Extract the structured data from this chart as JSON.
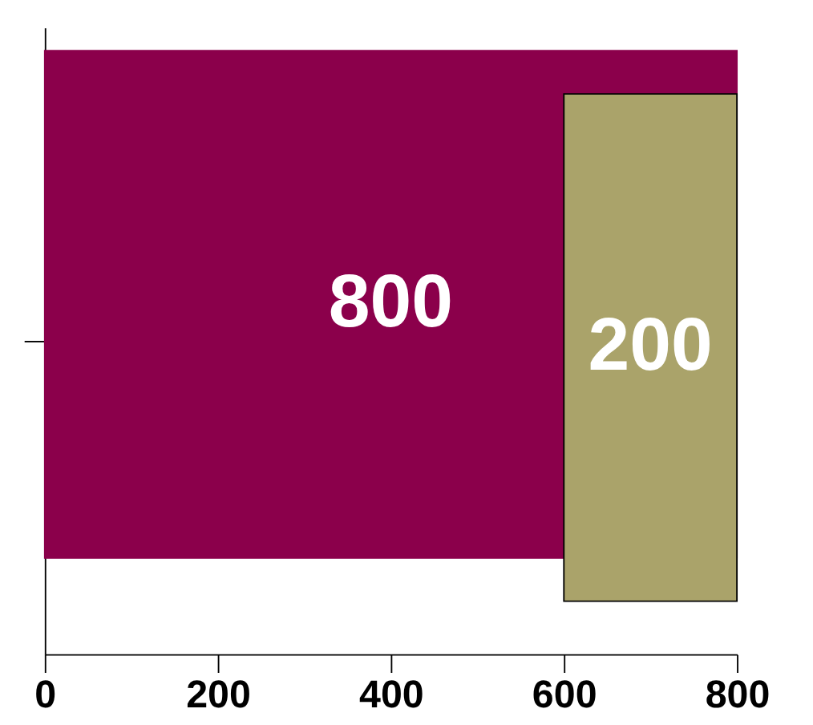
{
  "chart_data": {
    "type": "bar",
    "orientation": "horizontal",
    "categories": [
      null
    ],
    "series": [
      {
        "color": "#8b004b",
        "values": [
          800
        ],
        "base": [
          0
        ]
      },
      {
        "color": "#aaa36a",
        "values": [
          200
        ],
        "base": [
          600
        ]
      }
    ],
    "xlim": [
      0,
      800
    ],
    "xticks": [
      0,
      200,
      400,
      600,
      800
    ],
    "data_labels": true,
    "legend": false,
    "grid": false
  }
}
